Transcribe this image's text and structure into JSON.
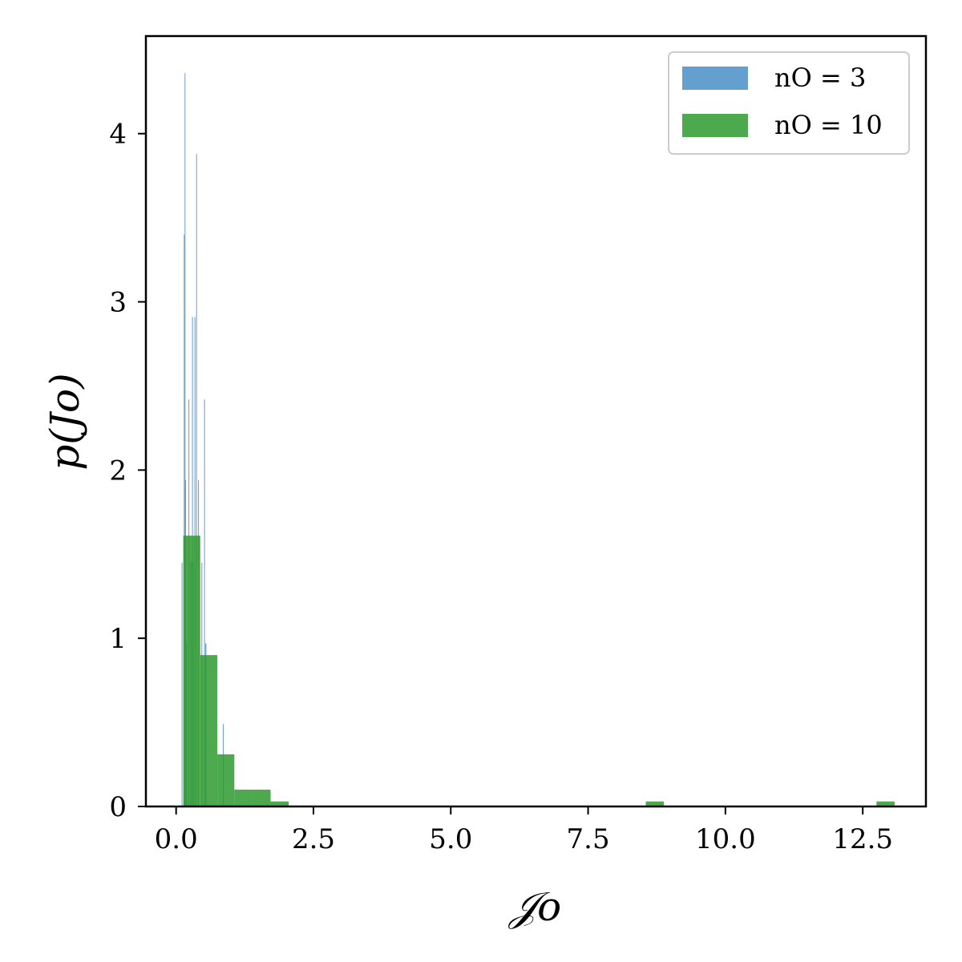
{
  "chart_data": {
    "type": "bar",
    "xlabel": "𝒥o",
    "ylabel": "p(Jo)",
    "xlim": [
      -0.55,
      13.65
    ],
    "ylim": [
      0,
      4.58
    ],
    "x_ticks": [
      {
        "value": 0,
        "label": "0.0"
      },
      {
        "value": 2.5,
        "label": "2.5"
      },
      {
        "value": 5,
        "label": "5.0"
      },
      {
        "value": 7.5,
        "label": "7.5"
      },
      {
        "value": 10,
        "label": "10.0"
      },
      {
        "value": 12.5,
        "label": "12.5"
      }
    ],
    "y_ticks": [
      {
        "value": 0,
        "label": "0"
      },
      {
        "value": 1,
        "label": "1"
      },
      {
        "value": 2,
        "label": "2"
      },
      {
        "value": 3,
        "label": "3"
      },
      {
        "value": 4,
        "label": "4"
      }
    ],
    "grid": false,
    "legend_position": "top-right",
    "series": [
      {
        "name": "nO = 3",
        "color": "#5b9bcc",
        "opacity": 0.95,
        "bars": [
          {
            "x0": 0.1,
            "x1": 0.115,
            "value": 1.45
          },
          {
            "x0": 0.14,
            "x1": 0.152,
            "value": 3.4
          },
          {
            "x0": 0.155,
            "x1": 0.163,
            "value": 4.36
          },
          {
            "x0": 0.165,
            "x1": 0.18,
            "value": 1.94
          },
          {
            "x0": 0.18,
            "x1": 0.2,
            "value": 0.97
          },
          {
            "x0": 0.225,
            "x1": 0.24,
            "value": 2.42
          },
          {
            "x0": 0.26,
            "x1": 0.28,
            "value": 1.45
          },
          {
            "x0": 0.29,
            "x1": 0.305,
            "value": 2.91
          },
          {
            "x0": 0.305,
            "x1": 0.32,
            "value": 1.45
          },
          {
            "x0": 0.335,
            "x1": 0.35,
            "value": 2.91
          },
          {
            "x0": 0.365,
            "x1": 0.378,
            "value": 3.88
          },
          {
            "x0": 0.4,
            "x1": 0.415,
            "value": 1.94
          },
          {
            "x0": 0.46,
            "x1": 0.475,
            "value": 1.45
          },
          {
            "x0": 0.51,
            "x1": 0.525,
            "value": 2.42
          },
          {
            "x0": 0.53,
            "x1": 0.55,
            "value": 0.97
          },
          {
            "x0": 0.85,
            "x1": 0.865,
            "value": 0.49
          }
        ]
      },
      {
        "name": "nO = 10",
        "color": "#2e9a2e",
        "opacity": 0.85,
        "bars": [
          {
            "x0": 0.13,
            "x1": 0.44,
            "value": 1.61
          },
          {
            "x0": 0.44,
            "x1": 0.75,
            "value": 0.9
          },
          {
            "x0": 0.75,
            "x1": 1.06,
            "value": 0.31
          },
          {
            "x0": 1.06,
            "x1": 1.37,
            "value": 0.1
          },
          {
            "x0": 1.37,
            "x1": 1.72,
            "value": 0.1
          },
          {
            "x0": 1.72,
            "x1": 2.05,
            "value": 0.03
          },
          {
            "x0": 8.55,
            "x1": 8.88,
            "value": 0.03
          },
          {
            "x0": 12.75,
            "x1": 13.08,
            "value": 0.03
          }
        ]
      }
    ]
  }
}
